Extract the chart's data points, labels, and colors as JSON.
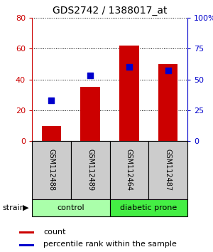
{
  "title": "GDS2742 / 1388017_at",
  "categories": [
    "GSM112488",
    "GSM112489",
    "GSM112464",
    "GSM112487"
  ],
  "bar_values": [
    10,
    35,
    62,
    50
  ],
  "percentile_values": [
    33,
    53,
    60,
    57
  ],
  "bar_color": "#cc0000",
  "percentile_color": "#0000cc",
  "ylim_left": [
    0,
    80
  ],
  "ylim_right": [
    0,
    100
  ],
  "yticks_left": [
    0,
    20,
    40,
    60,
    80
  ],
  "ytick_labels_left": [
    "0",
    "20",
    "40",
    "60",
    "80"
  ],
  "yticks_right": [
    0,
    25,
    50,
    75,
    100
  ],
  "ytick_labels_right": [
    "0",
    "25",
    "50",
    "75",
    "100%"
  ],
  "group_labels": [
    "control",
    "diabetic prone"
  ],
  "group_colors": [
    "#aaffaa",
    "#44ee44"
  ],
  "group_ranges": [
    [
      0,
      2
    ],
    [
      2,
      4
    ]
  ],
  "legend_items": [
    "count",
    "percentile rank within the sample"
  ],
  "strain_label": "strain",
  "background_color": "#ffffff",
  "bar_width": 0.5,
  "figsize": [
    3.0,
    3.54
  ],
  "dpi": 100
}
